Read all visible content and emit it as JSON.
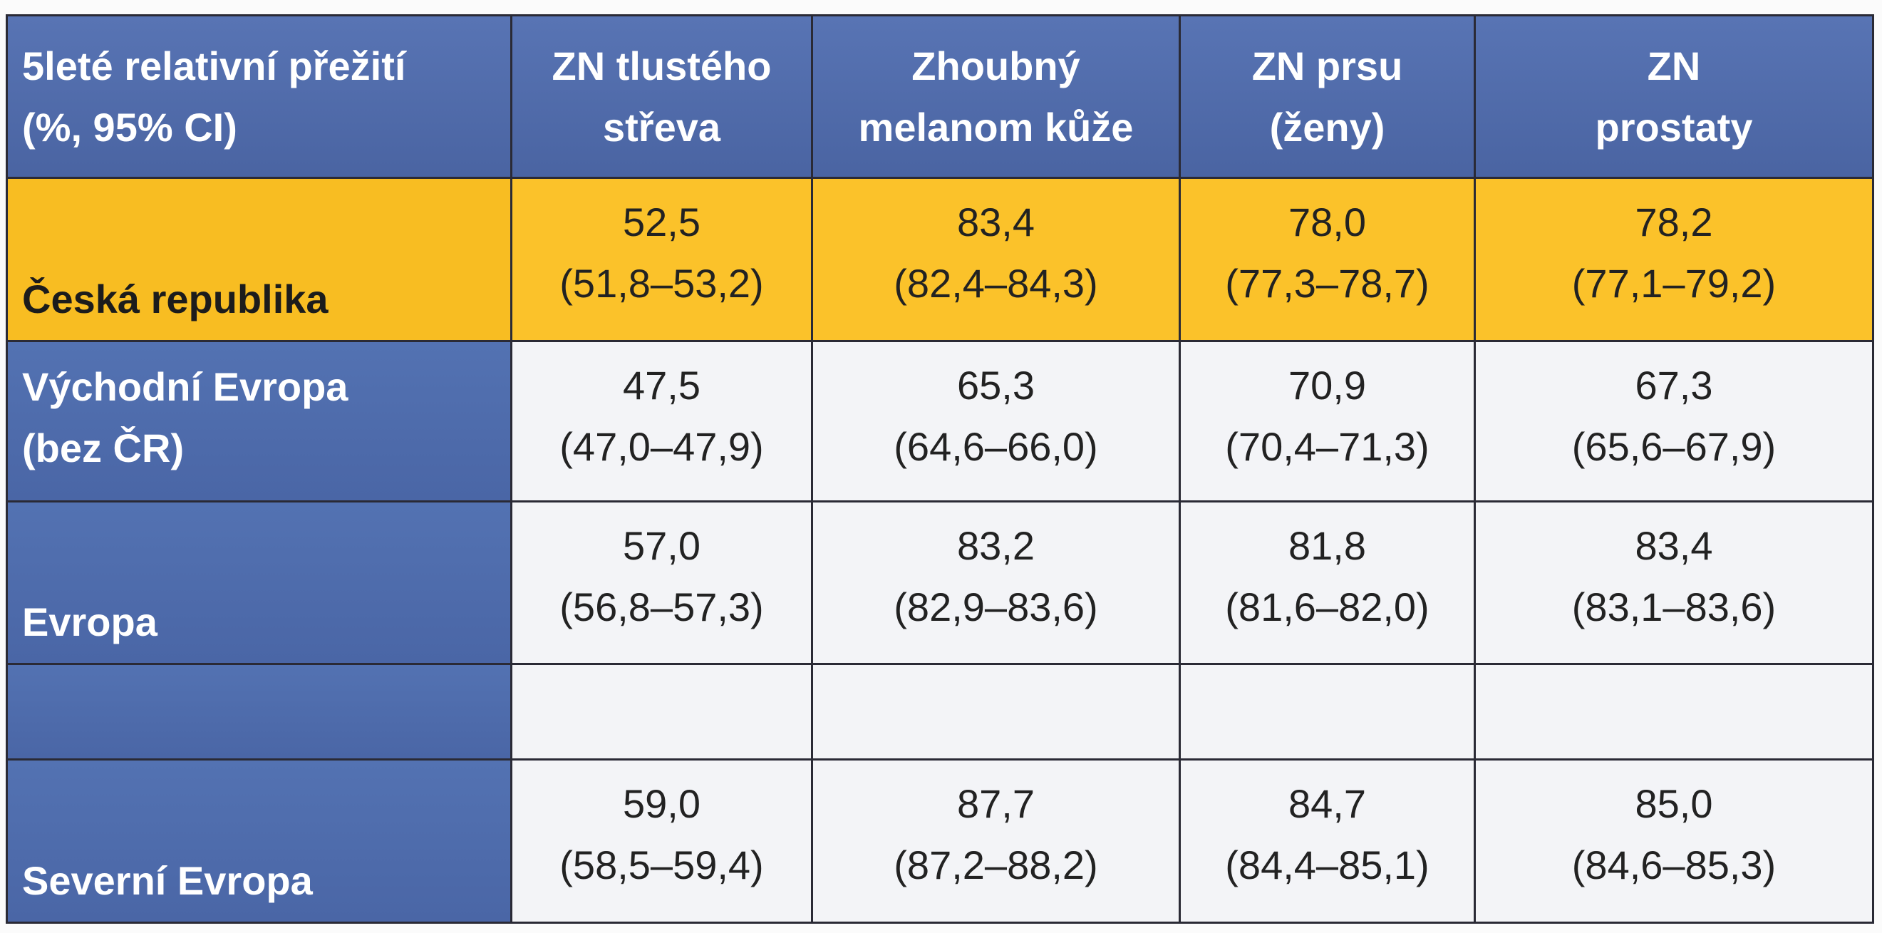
{
  "table": {
    "header": [
      [
        "5leté relativní přežití",
        "(%, 95% CI)"
      ],
      [
        "ZN tlustého",
        "střeva"
      ],
      [
        "Zhoubný",
        "melanom kůže"
      ],
      [
        "ZN prsu",
        "(ženy)"
      ],
      [
        "ZN",
        "prostaty"
      ]
    ],
    "rows": [
      {
        "label": [
          "Česká republika"
        ],
        "cells": [
          [
            "52,5",
            "(51,8–53,2)"
          ],
          [
            "83,4",
            "(82,4–84,3)"
          ],
          [
            "78,0",
            "(77,3–78,7)"
          ],
          [
            "78,2",
            "(77,1–79,2)"
          ]
        ]
      },
      {
        "label": [
          "Východní Evropa",
          "(bez ČR)"
        ],
        "cells": [
          [
            "47,5",
            "(47,0–47,9)"
          ],
          [
            "65,3",
            "(64,6–66,0)"
          ],
          [
            "70,9",
            "(70,4–71,3)"
          ],
          [
            "67,3",
            "(65,6–67,9)"
          ]
        ]
      },
      {
        "label": [
          "Evropa"
        ],
        "cells": [
          [
            "57,0",
            "(56,8–57,3)"
          ],
          [
            "83,2",
            "(82,9–83,6)"
          ],
          [
            "81,8",
            "(81,6–82,0)"
          ],
          [
            "83,4",
            "(83,1–83,6)"
          ]
        ]
      },
      {
        "label": [
          "Severní Evropa"
        ],
        "cells": [
          [
            "59,0",
            "(58,5–59,4)"
          ],
          [
            "87,7",
            "(87,2–88,2)"
          ],
          [
            "84,7",
            "(84,4–85,1)"
          ],
          [
            "85,0",
            "(84,6–85,3)"
          ]
        ]
      }
    ]
  }
}
